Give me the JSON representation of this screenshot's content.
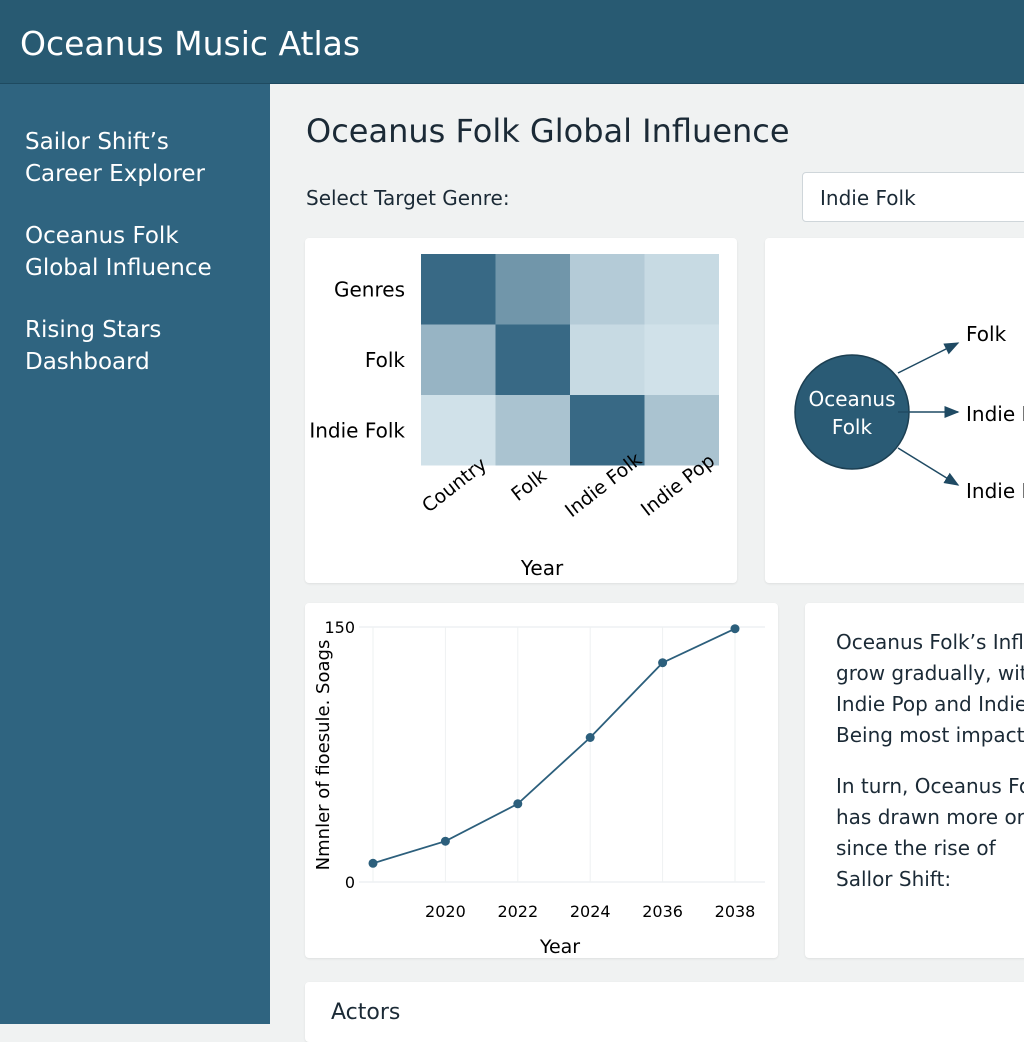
{
  "header": {
    "title": "Oceanus Music Atlas"
  },
  "sidebar": {
    "items": [
      "Sailor Shift’s Career Explorer",
      "Oceanus Folk Global Influence",
      "Rising Stars Dashboard"
    ]
  },
  "page": {
    "title": "Oceanus Folk Global Influence",
    "select_label": "Select Target Genre:",
    "select_value": "Indie Folk"
  },
  "heatmap": {
    "rows": [
      "Genres",
      "Folk",
      "Indie Folk"
    ],
    "columns": [
      "Country",
      "Folk",
      "Indie Folk",
      "Indie Pop"
    ],
    "x_label": "Year",
    "values": [
      [
        0.9,
        0.6,
        0.25,
        0.15
      ],
      [
        0.4,
        0.9,
        0.15,
        0.1
      ],
      [
        0.1,
        0.3,
        0.9,
        0.3
      ]
    ]
  },
  "network": {
    "source": "Oceanus Folk",
    "targets": [
      "Folk",
      "Indie Folk",
      "Indie Pop"
    ]
  },
  "chart_data": {
    "type": "line",
    "x_label": "Year",
    "y_label": "Nmnler of fioesule. Soags",
    "categories": [
      null,
      "2020",
      "2022",
      "2024",
      "2036",
      "2038"
    ],
    "values": [
      11,
      24,
      46,
      85,
      129,
      149
    ],
    "color": "#2c5f7c",
    "ylim": [
      0,
      150
    ],
    "yticks": [
      0,
      150
    ],
    "grid": true
  },
  "text_panel": {
    "paragraphs": [
      [
        "Oceanus Folk’s Infl",
        "grow gradually, wit",
        "Indie Pop and Indie",
        "Being most impacte"
      ],
      [
        "In turn, Oceanus Fo",
        "has drawn more or",
        "since the rise of",
        "Sallor Shift:"
      ]
    ]
  },
  "bottom": {
    "title": "Actors"
  }
}
